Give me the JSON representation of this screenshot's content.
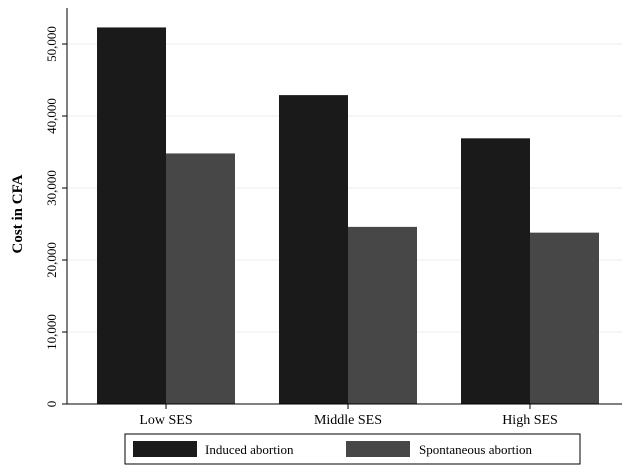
{
  "chart_data": {
    "type": "bar",
    "title": "",
    "xlabel": "",
    "ylabel": "Cost in CFA",
    "ylim": [
      0,
      55000
    ],
    "yticks": [
      0,
      10000,
      20000,
      30000,
      40000,
      50000
    ],
    "ytick_labels": [
      "0",
      "10,000",
      "20,000",
      "30,000",
      "40,000",
      "50,000"
    ],
    "grid": true,
    "legend_position": "bottom",
    "categories": [
      "Low SES",
      "Middle SES",
      "High SES"
    ],
    "series": [
      {
        "name": "Induced abortion",
        "color": "#1a1a1a",
        "values": [
          52300,
          42900,
          36900
        ]
      },
      {
        "name": "Spontaneous abortion",
        "color": "#474747",
        "values": [
          34800,
          24600,
          23800
        ]
      }
    ]
  }
}
